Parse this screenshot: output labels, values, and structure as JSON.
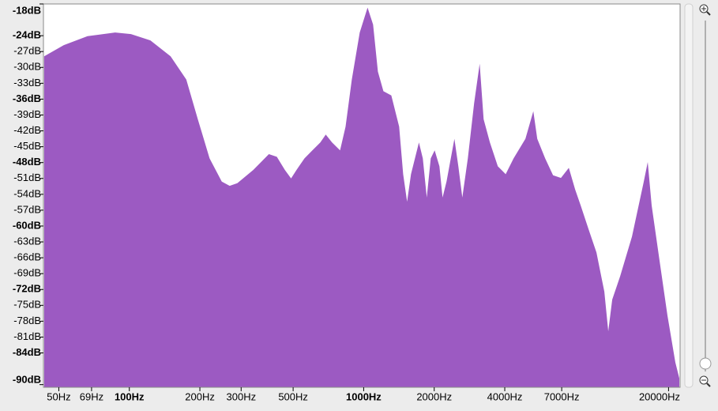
{
  "chart_data": {
    "type": "area",
    "color": "#9c5ac2",
    "xscale": "log",
    "xlim": [
      43,
      22400
    ],
    "ylim": [
      -90.5,
      -18
    ],
    "xticks": [
      {
        "value": 50,
        "label": "50Hz"
      },
      {
        "value": 69,
        "label": "69Hz"
      },
      {
        "value": 100,
        "label": "100Hz"
      },
      {
        "value": 200,
        "label": "200Hz"
      },
      {
        "value": 300,
        "label": "300Hz"
      },
      {
        "value": 500,
        "label": "500Hz"
      },
      {
        "value": 1000,
        "label": "1000Hz"
      },
      {
        "value": 2000,
        "label": "2000Hz"
      },
      {
        "value": 4000,
        "label": "4000Hz"
      },
      {
        "value": 7000,
        "label": "7000Hz"
      },
      {
        "value": 20000,
        "label": "20000Hz"
      }
    ],
    "yticks": [
      {
        "value": -18,
        "label": "-18dB"
      },
      {
        "value": -24,
        "label": "-24dB"
      },
      {
        "value": -27,
        "label": "-27dB"
      },
      {
        "value": -30,
        "label": "-30dB"
      },
      {
        "value": -33,
        "label": "-33dB"
      },
      {
        "value": -36,
        "label": "-36dB"
      },
      {
        "value": -39,
        "label": "-39dB"
      },
      {
        "value": -42,
        "label": "-42dB"
      },
      {
        "value": -45,
        "label": "-45dB"
      },
      {
        "value": -48,
        "label": "-48dB"
      },
      {
        "value": -51,
        "label": "-51dB"
      },
      {
        "value": -54,
        "label": "-54dB"
      },
      {
        "value": -57,
        "label": "-57dB"
      },
      {
        "value": -60,
        "label": "-60dB"
      },
      {
        "value": -63,
        "label": "-63dB"
      },
      {
        "value": -66,
        "label": "-66dB"
      },
      {
        "value": -69,
        "label": "-69dB"
      },
      {
        "value": -72,
        "label": "-72dB"
      },
      {
        "value": -75,
        "label": "-75dB"
      },
      {
        "value": -78,
        "label": "-78dB"
      },
      {
        "value": -81,
        "label": "-81dB"
      },
      {
        "value": -84,
        "label": "-84dB"
      },
      {
        "value": -90,
        "label": "-90dB"
      }
    ],
    "x": [
      43.3,
      52.5,
      66.3,
      87,
      101.6,
      123,
      150,
      175,
      196,
      220,
      248,
      268,
      289,
      338,
      394,
      426,
      461,
      490,
      517,
      559,
      604,
      653,
      689,
      733,
      793,
      837,
      890,
      962,
      1039,
      1097,
      1150,
      1214,
      1312,
      1417,
      1474,
      1532,
      1592,
      1721,
      1788,
      1859,
      1933,
      2009,
      2105,
      2171,
      2257,
      2439,
      2535,
      2636,
      2783,
      2960,
      3126,
      3250,
      3457,
      3736,
      4037,
      4363,
      4900,
      5296,
      5505,
      5949,
      6429,
      6947,
      7507,
      7988,
      8433,
      9113,
      9847,
      10640,
      11060,
      11500,
      12430,
      13960,
      15680,
      16300,
      16940,
      18300,
      19780,
      21380,
      22230
    ],
    "values": [
      -27.9,
      -25.8,
      -24.1,
      -23.4,
      -23.7,
      -24.9,
      -27.9,
      -32.3,
      -39.8,
      -47.2,
      -51.6,
      -52.4,
      -51.9,
      -49.4,
      -46.4,
      -46.9,
      -49.4,
      -51.0,
      -49.4,
      -47.2,
      -45.7,
      -44.2,
      -42.7,
      -44.2,
      -45.7,
      -41.2,
      -32.3,
      -23.4,
      -18.7,
      -21.9,
      -30.8,
      -34.5,
      -35.3,
      -41.2,
      -50.2,
      -55.4,
      -50.2,
      -44.2,
      -47.2,
      -54.6,
      -47.2,
      -45.7,
      -48.7,
      -54.6,
      -51.6,
      -43.5,
      -48.7,
      -54.6,
      -47.2,
      -36.8,
      -29.3,
      -39.8,
      -44.2,
      -48.7,
      -50.2,
      -47.2,
      -43.5,
      -38.3,
      -43.5,
      -47.2,
      -50.4,
      -50.9,
      -49.0,
      -53.1,
      -56.1,
      -60.6,
      -65.0,
      -72.4,
      -79.9,
      -73.9,
      -69.5,
      -62.0,
      -51.6,
      -47.9,
      -56.1,
      -66.5,
      -76.9,
      -85.8,
      -88.8
    ]
  }
}
